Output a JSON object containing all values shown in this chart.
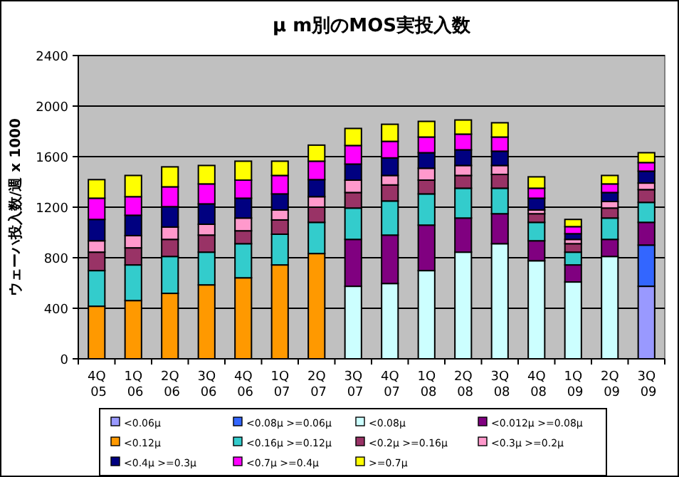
{
  "chart_data": {
    "type": "bar",
    "title": "μ m別のMOS実投入数",
    "ylabel": "ウェーハ投入数/週 x 1000",
    "categories": [
      "4Q 05",
      "1Q 06",
      "2Q 06",
      "3Q 06",
      "4Q 06",
      "1Q 07",
      "2Q 07",
      "3Q 07",
      "4Q 07",
      "1Q 08",
      "2Q 08",
      "3Q 08",
      "4Q 08",
      "1Q 09",
      "2Q 09",
      "3Q 09"
    ],
    "stacked": true,
    "grid": "y",
    "legend": "bottom",
    "ylim": [
      0,
      2400
    ],
    "yticks": [
      0,
      400,
      800,
      1200,
      1600,
      2000,
      2400
    ],
    "series": [
      {
        "name": "<0.06μ",
        "color": "#9999ff",
        "values": [
          null,
          null,
          null,
          null,
          null,
          null,
          null,
          null,
          null,
          null,
          null,
          null,
          null,
          null,
          null,
          574
        ]
      },
      {
        "name": "<0.08μ >=0.06μ",
        "color": "#3366ff",
        "values": [
          null,
          null,
          null,
          null,
          null,
          null,
          null,
          null,
          null,
          null,
          null,
          null,
          null,
          null,
          null,
          326
        ]
      },
      {
        "name": "<0.08μ",
        "color": "#ccffff",
        "values": [
          null,
          null,
          null,
          null,
          null,
          null,
          null,
          574,
          596,
          698,
          844,
          911,
          776,
          608,
          810,
          null
        ]
      },
      {
        "name": "<0.012μ >=0.08μ",
        "color": "#800080",
        "values": [
          null,
          null,
          null,
          null,
          null,
          null,
          null,
          371,
          383,
          360,
          270,
          237,
          158,
          135,
          135,
          180
        ]
      },
      {
        "name": "<0.12μ",
        "color": "#ff9900",
        "values": [
          416,
          461,
          518,
          585,
          641,
          743,
          833,
          null,
          null,
          null,
          null,
          null,
          null,
          null,
          null,
          null
        ]
      },
      {
        "name": "<0.16μ >=0.12μ",
        "color": "#33cccc",
        "values": [
          282,
          282,
          292,
          259,
          270,
          243,
          247,
          248,
          270,
          247,
          236,
          202,
          146,
          101,
          169,
          158
        ]
      },
      {
        "name": "<0.2μ >=0.16μ",
        "color": "#993366",
        "values": [
          146,
          135,
          135,
          135,
          102,
          113,
          120,
          123,
          127,
          109,
          101,
          109,
          68,
          67,
          79,
          101
        ]
      },
      {
        "name": "<0.3μ >=0.2μ",
        "color": "#ff99cc",
        "values": [
          90,
          97,
          98,
          86,
          101,
          79,
          83,
          98,
          75,
          94,
          79,
          71,
          30,
          34,
          52,
          52
        ]
      },
      {
        "name": "<0.4μ >=0.3μ",
        "color": "#000080",
        "values": [
          169,
          161,
          161,
          161,
          157,
          127,
          135,
          127,
          139,
          123,
          124,
          113,
          93,
          45,
          71,
          94
        ]
      },
      {
        "name": "<0.7μ >=0.4μ",
        "color": "#ff00ff",
        "values": [
          168,
          147,
          157,
          158,
          143,
          146,
          146,
          147,
          131,
          124,
          124,
          112,
          79,
          56,
          68,
          68
        ]
      },
      {
        "name": ">=0.7μ",
        "color": "#ffff00",
        "values": [
          147,
          168,
          158,
          146,
          150,
          113,
          127,
          135,
          135,
          124,
          112,
          113,
          90,
          57,
          67,
          78
        ]
      }
    ]
  }
}
